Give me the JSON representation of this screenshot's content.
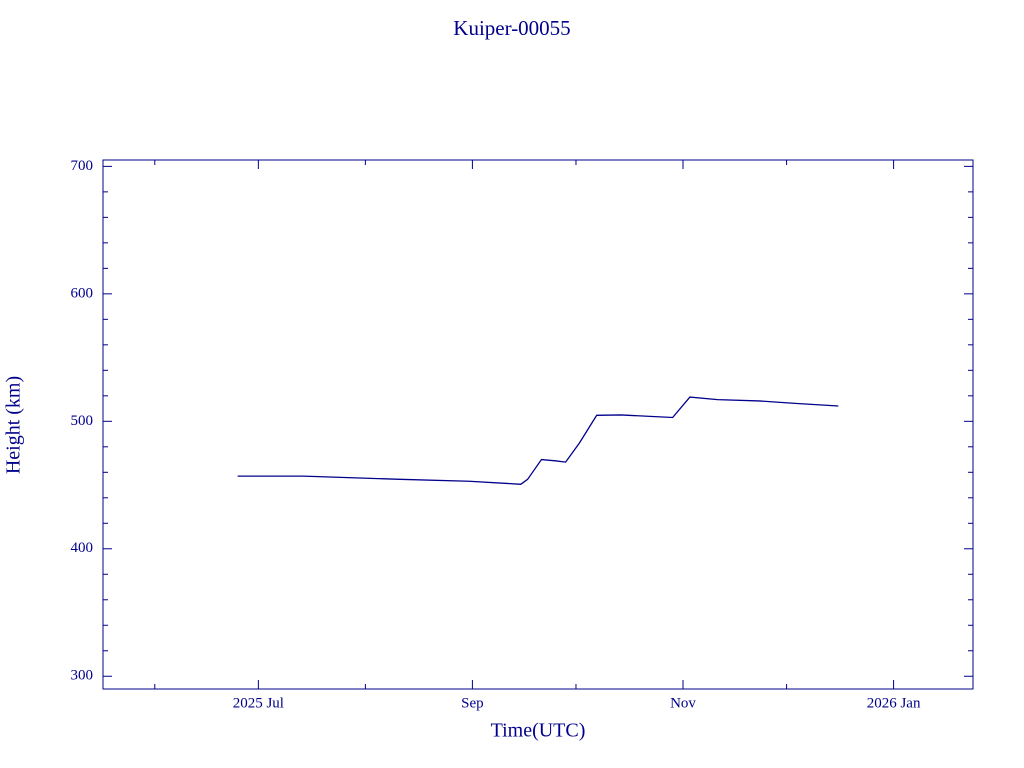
{
  "chart_data": {
    "type": "line",
    "title": "Kuiper-00055",
    "x_label": "Time(UTC)",
    "y_label": "Height (km)",
    "color": "#00008b",
    "xlim": [
      "2025-05-17",
      "2026-01-24"
    ],
    "xticks": [
      {
        "value": "2025-07-01",
        "label": "2025 Jul"
      },
      {
        "value": "2025-09-01",
        "label": "Sep"
      },
      {
        "value": "2025-11-01",
        "label": "Nov"
      },
      {
        "value": "2026-01-01",
        "label": "2026 Jan"
      }
    ],
    "xminorticks": [
      "2025-06-01",
      "2025-08-01",
      "2025-10-01",
      "2025-12-01"
    ],
    "ylim": [
      290,
      705
    ],
    "yticks": [
      300,
      400,
      500,
      600,
      700
    ],
    "yminorticks": [
      320,
      340,
      360,
      380,
      420,
      440,
      460,
      480,
      520,
      540,
      560,
      580,
      620,
      640,
      660,
      680
    ],
    "x": [
      "2025-06-25",
      "2025-07-14",
      "2025-08-11",
      "2025-08-31",
      "2025-09-15",
      "2025-09-17",
      "2025-09-21",
      "2025-09-25",
      "2025-09-28",
      "2025-10-02",
      "2025-10-07",
      "2025-10-14",
      "2025-10-29",
      "2025-11-03",
      "2025-11-11",
      "2025-11-23",
      "2025-12-04",
      "2025-12-16"
    ],
    "values": [
      457,
      457,
      454.5,
      453,
      450.6,
      454.5,
      470,
      469,
      468,
      483,
      504.7,
      505,
      503,
      519,
      517,
      516,
      514,
      512
    ]
  }
}
